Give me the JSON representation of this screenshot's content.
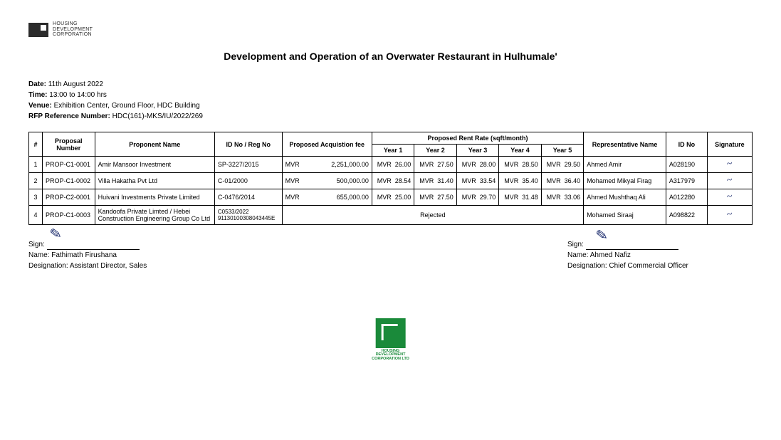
{
  "logo": {
    "line1": "HOUSING",
    "line2": "DEVELOPMENT",
    "line3": "CORPORATION"
  },
  "title": "Development and Operation of an Overwater Restaurant in Hulhumale'",
  "meta": {
    "date_label": "Date:",
    "date": "11th August 2022",
    "time_label": "Time:",
    "time": "13:00 to 14:00 hrs",
    "venue_label": "Venue:",
    "venue": "Exhibition Center, Ground Floor, HDC Building",
    "rfp_label": "RFP Reference Number:",
    "rfp": "HDC(161)-MKS/IU/2022/269"
  },
  "headers": {
    "num": "#",
    "proposal": "Proposal Number",
    "proponent": "Proponent Name",
    "idreg": "ID No / Reg No",
    "acq": "Proposed Acquistion fee",
    "rent": "Proposed Rent Rate (sqft/month)",
    "y1": "Year 1",
    "y2": "Year 2",
    "y3": "Year 3",
    "y4": "Year 4",
    "y5": "Year 5",
    "rep": "Representative Name",
    "idno": "ID No",
    "sig": "Signature"
  },
  "currency": "MVR",
  "rows": [
    {
      "n": "1",
      "proposal": "PROP-C1-0001",
      "proponent": "Amir Mansoor Investment",
      "idreg": "SP-3227/2015",
      "acq": "2,251,000.00",
      "y1": "26.00",
      "y2": "27.50",
      "y3": "28.00",
      "y4": "28.50",
      "y5": "29.50",
      "rep": "Ahmed Amir",
      "idno": "A028190"
    },
    {
      "n": "2",
      "proposal": "PROP-C1-0002",
      "proponent": "Villa Hakatha Pvt Ltd",
      "idreg": "C-01/2000",
      "acq": "500,000.00",
      "y1": "28.54",
      "y2": "31.40",
      "y3": "33.54",
      "y4": "35.40",
      "y5": "36.40",
      "rep": "Mohamed Mikyal Firag",
      "idno": "A317979"
    },
    {
      "n": "3",
      "proposal": "PROP-C2-0001",
      "proponent": "Huivani Investments Private Limited",
      "idreg": "C-0476/2014",
      "acq": "655,000.00",
      "y1": "25.00",
      "y2": "27.50",
      "y3": "29.70",
      "y4": "31.48",
      "y5": "33.06",
      "rep": "Ahmed Mushthaq Ali",
      "idno": "A012280"
    }
  ],
  "rejected_row": {
    "n": "4",
    "proposal": "PROP-C1-0003",
    "proponent": "Kandoofa Private Limted / Hebei Construction Engineering Group Co Ltd",
    "idreg_line1": "C0533/2022",
    "idreg_line2": "91130100308043445E",
    "status": "Rejected",
    "rep": "Mohamed Siraaj",
    "idno": "A098822"
  },
  "sign_left": {
    "sign_label": "Sign:",
    "name_label": "Name:",
    "name": "Fathimath Firushana",
    "desig_label": "Designation:",
    "desig": "Assistant Director, Sales"
  },
  "sign_right": {
    "sign_label": "Sign:",
    "name_label": "Name:",
    "name": "Ahmed Nafiz",
    "desig_label": "Designation:",
    "desig": "Chief Commercial Officer"
  },
  "stamp": {
    "l1": "HOUSING",
    "l2": "DEVELOPMENT",
    "l3": "CORPORATION LTD"
  },
  "style": {
    "border_color": "#000000",
    "text_color": "#000000",
    "signature_ink": "#1a2a6c",
    "stamp_color": "#1a8a3a"
  }
}
